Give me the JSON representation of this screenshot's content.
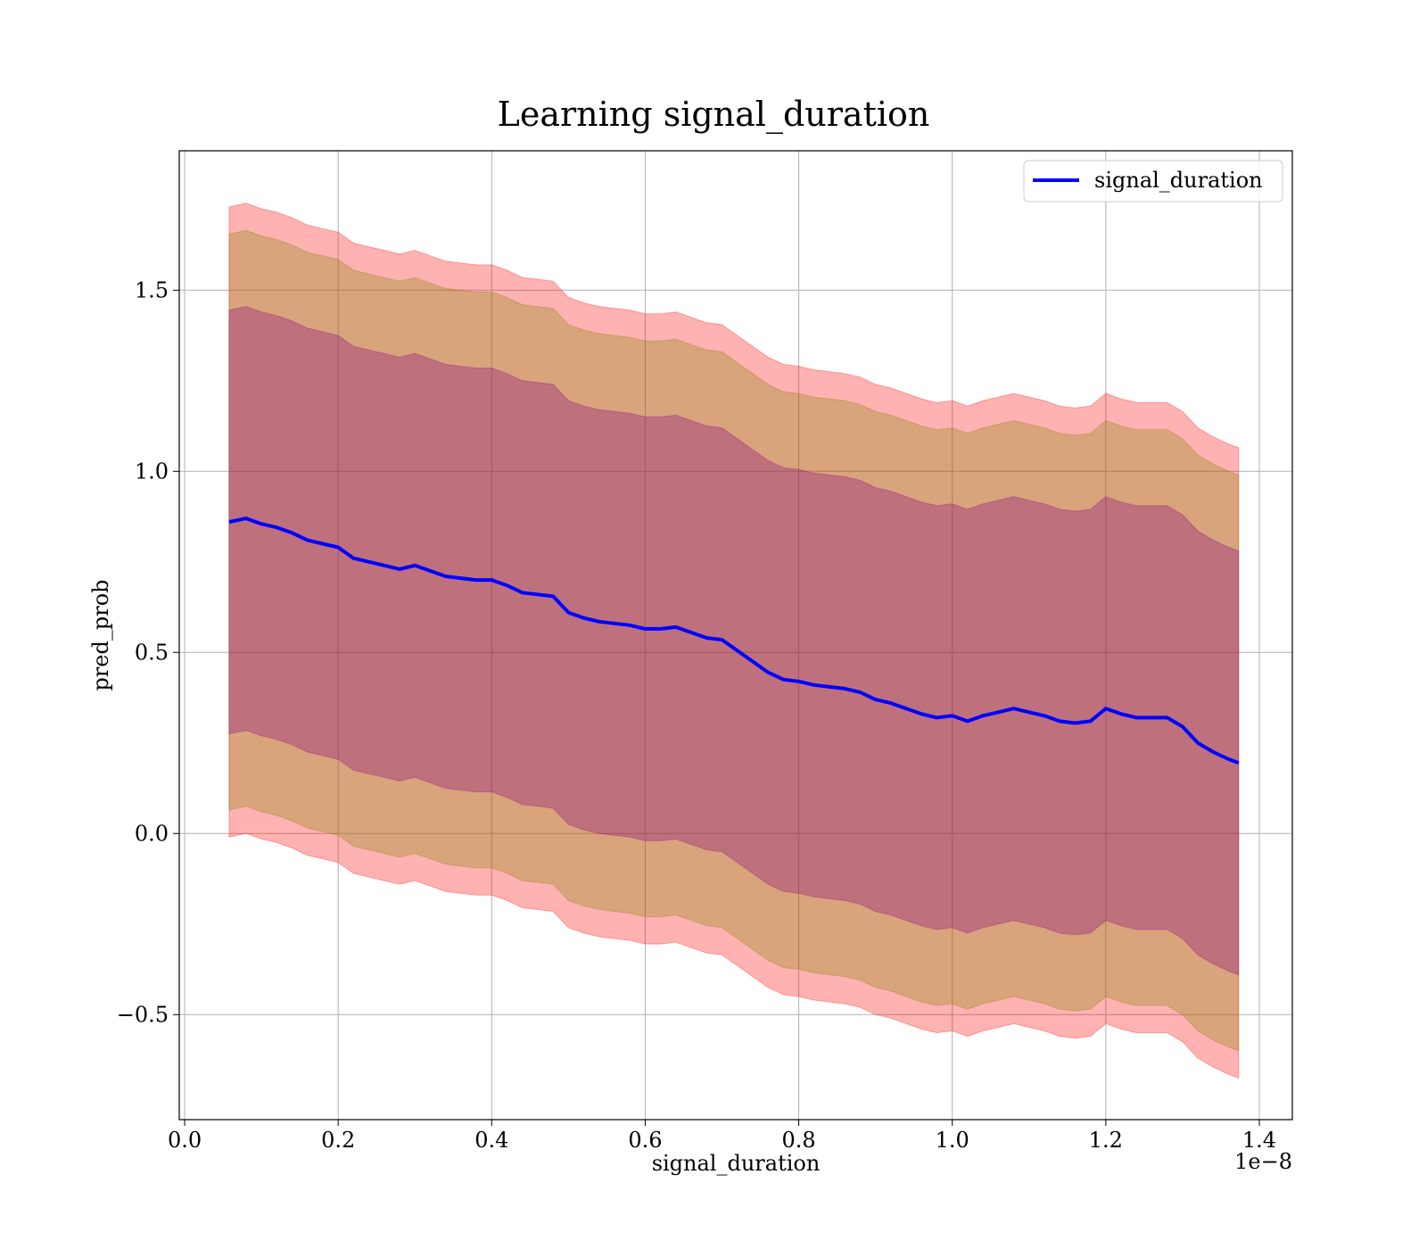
{
  "chart_data": {
    "type": "line",
    "title": "Learning signal_duration",
    "xlabel": "signal_duration",
    "ylabel": "pred_prob",
    "x_offset_label": "1e−8",
    "xlim": [
      -0.007,
      1.443
    ],
    "ylim": [
      -0.79,
      1.885
    ],
    "x_ticks": [
      0.0,
      0.2,
      0.4,
      0.6,
      0.8,
      1.0,
      1.2,
      1.4
    ],
    "x_tick_labels": [
      "0.0",
      "0.2",
      "0.4",
      "0.6",
      "0.8",
      "1.0",
      "1.2",
      "1.4"
    ],
    "y_ticks": [
      -0.5,
      0.0,
      0.5,
      1.0,
      1.5
    ],
    "y_tick_labels": [
      "−0.5",
      "0.0",
      "0.5",
      "1.0",
      "1.5"
    ],
    "grid": true,
    "legend_position": "top-right",
    "series": [
      {
        "name": "signal_duration",
        "color": "#0000ff",
        "x": [
          0.058,
          0.08,
          0.1,
          0.12,
          0.14,
          0.16,
          0.18,
          0.2,
          0.22,
          0.24,
          0.26,
          0.28,
          0.3,
          0.32,
          0.34,
          0.36,
          0.38,
          0.4,
          0.42,
          0.44,
          0.46,
          0.48,
          0.5,
          0.52,
          0.54,
          0.56,
          0.58,
          0.6,
          0.62,
          0.64,
          0.66,
          0.68,
          0.7,
          0.72,
          0.74,
          0.76,
          0.78,
          0.8,
          0.82,
          0.84,
          0.86,
          0.88,
          0.9,
          0.92,
          0.94,
          0.96,
          0.98,
          1.0,
          1.02,
          1.04,
          1.06,
          1.08,
          1.1,
          1.12,
          1.14,
          1.16,
          1.18,
          1.2,
          1.22,
          1.24,
          1.26,
          1.28,
          1.3,
          1.32,
          1.34,
          1.36,
          1.373
        ],
        "y": [
          0.86,
          0.87,
          0.855,
          0.845,
          0.83,
          0.81,
          0.8,
          0.79,
          0.76,
          0.75,
          0.74,
          0.73,
          0.74,
          0.725,
          0.71,
          0.705,
          0.7,
          0.7,
          0.685,
          0.665,
          0.66,
          0.655,
          0.61,
          0.595,
          0.585,
          0.58,
          0.575,
          0.565,
          0.565,
          0.57,
          0.555,
          0.54,
          0.535,
          0.505,
          0.475,
          0.445,
          0.425,
          0.42,
          0.41,
          0.405,
          0.4,
          0.39,
          0.37,
          0.36,
          0.345,
          0.33,
          0.32,
          0.325,
          0.31,
          0.325,
          0.335,
          0.345,
          0.335,
          0.325,
          0.31,
          0.305,
          0.31,
          0.345,
          0.33,
          0.32,
          0.32,
          0.32,
          0.295,
          0.25,
          0.225,
          0.205,
          0.195
        ]
      }
    ],
    "bands": [
      {
        "color": "#ff0000",
        "alpha": 0.3,
        "lower_offset": -0.87,
        "upper_offset": 0.87
      },
      {
        "color": "#808000",
        "alpha": 0.3,
        "lower_offset": -0.795,
        "upper_offset": 0.795
      },
      {
        "color": "#800080",
        "alpha": 0.3,
        "lower_offset": -0.585,
        "upper_offset": 0.585
      }
    ]
  }
}
